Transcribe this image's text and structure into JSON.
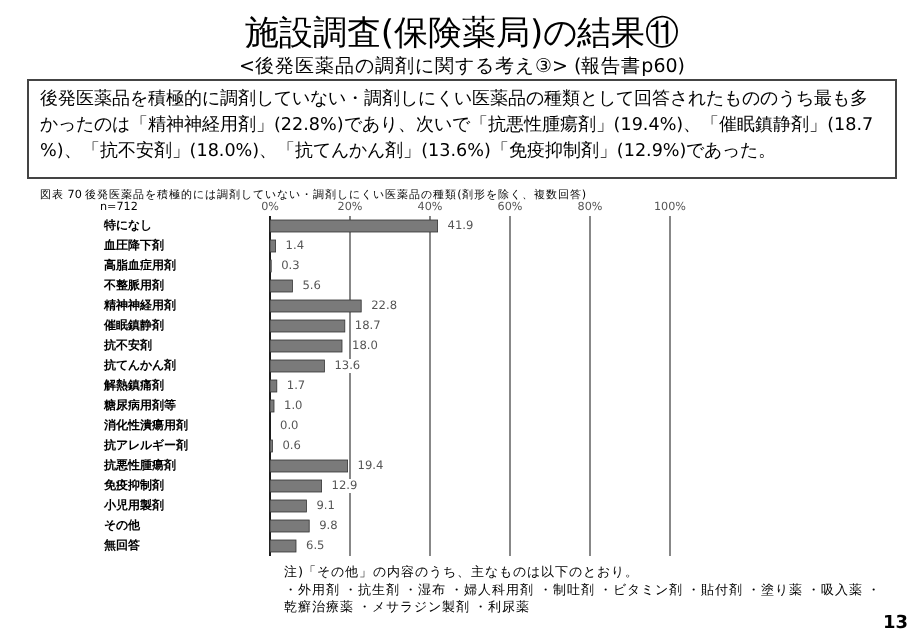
{
  "chart_data": {
    "type": "bar",
    "orientation": "horizontal",
    "title": "施設調査(保険薬局)の結果⑪",
    "subtitle": "<後発医薬品の調剤に関する考え③> (報告書p60)",
    "categories": [
      "特になし",
      "血圧降下剤",
      "高脂血症用剤",
      "不整脈用剤",
      "精神神経用剤",
      "催眠鎮静剤",
      "抗不安剤",
      "抗てんかん剤",
      "解熱鎮痛剤",
      "糖尿病用剤等",
      "消化性潰瘍用剤",
      "抗アレルギー剤",
      "抗悪性腫瘍剤",
      "免疫抑制剤",
      "小児用製剤",
      "その他",
      "無回答"
    ],
    "values": [
      41.9,
      1.4,
      0.3,
      5.6,
      22.8,
      18.7,
      18.0,
      13.6,
      1.7,
      1.0,
      0.0,
      0.6,
      19.4,
      12.9,
      9.1,
      9.8,
      6.5
    ],
    "value_labels": [
      "41.9",
      "1.4",
      "0.3",
      "5.6",
      "22.8",
      "18.7",
      "18.0",
      "13.6",
      "1.7",
      "1.0",
      "0.0",
      "0.6",
      "19.4",
      "12.9",
      "9.1",
      "9.8",
      "6.5"
    ],
    "color": "#7a7a7a",
    "xlim": [
      0,
      100
    ],
    "xticks": [
      {
        "value": 0,
        "label": "0%"
      },
      {
        "value": 20,
        "label": "20%"
      },
      {
        "value": 40,
        "label": "40%"
      },
      {
        "value": 60,
        "label": "60%"
      },
      {
        "value": 80,
        "label": "80%"
      },
      {
        "value": 100,
        "label": "100%"
      }
    ],
    "grid": "x",
    "annotations": [
      "後発医薬品を積極的に調剤していない・調剤しにくい医薬品の種類として回答されたもののうち最も多かったのは「精神神経用剤」(22.8%)であり、次いで「抗悪性腫瘍剤」(19.4%)、「催眠鎮静剤」(18.7%)、「抗不安剤」(18.0%)、「抗てんかん剤」(13.6%)「免疫抑制剤」(12.9%)であった。",
      "図表 70 後発医薬品を積極的には調剤していない・調剤しにくい医薬品の種類(剤形を除く、複数回答)",
      "n=712",
      "注)「その他」の内容のうち、主なものは以下のとおり。",
      "・外用剤 ・抗生剤 ・湿布 ・婦人科用剤 ・制吐剤 ・ビタミン剤 ・貼付剤 ・塗り薬 ・吸入薬 ・乾癬治療薬 ・メサラジン製剤 ・利尿薬",
      "13"
    ]
  }
}
